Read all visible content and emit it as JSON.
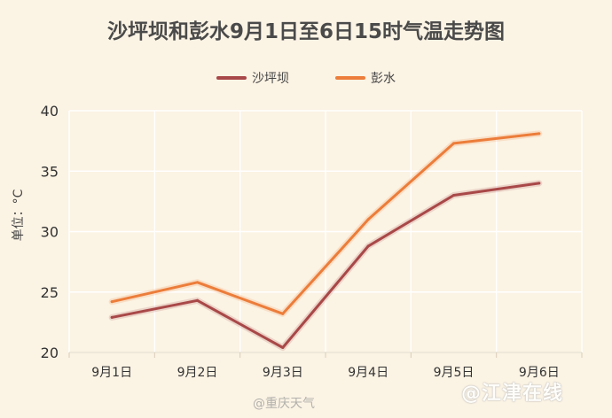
{
  "chart_data": {
    "type": "line",
    "title": "沙坪坝和彭水9月1日至6日15时气温走势图",
    "ylabel": "单位：°C",
    "xlabel": "",
    "categories": [
      "9月1日",
      "9月2日",
      "9月3日",
      "9月4日",
      "9月5日",
      "9月6日"
    ],
    "ylim": [
      20,
      40
    ],
    "yticks": [
      20,
      25,
      30,
      35,
      40
    ],
    "grid": true,
    "legend_position": "top-center",
    "series": [
      {
        "name": "沙坪坝",
        "values": [
          22.9,
          24.3,
          20.4,
          28.8,
          33.0,
          34.0
        ],
        "color": "#a94848"
      },
      {
        "name": "彭水",
        "values": [
          24.2,
          25.8,
          23.2,
          31.0,
          37.3,
          38.1
        ],
        "color": "#ec7d3a"
      }
    ]
  },
  "watermarks": {
    "left": "@重庆天气",
    "right": "@江津在线"
  }
}
